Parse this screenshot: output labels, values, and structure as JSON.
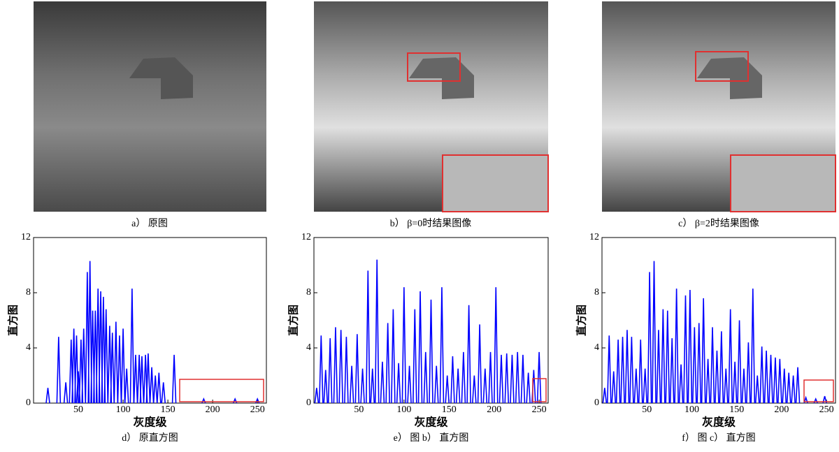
{
  "images": [
    {
      "caption": "a） 原图"
    },
    {
      "caption": "b） β=0时结果图像"
    },
    {
      "caption": "c） β=2时结果图像"
    }
  ],
  "chart_data": [
    {
      "type": "line",
      "caption": "d） 原直方图",
      "xlabel": "灰度级",
      "ylabel": "直方图",
      "color": "#0000ff",
      "xlim": [
        0,
        260
      ],
      "ylim": [
        0,
        12
      ],
      "xticks": [
        50,
        100,
        150,
        200,
        250
      ],
      "yticks": [
        0,
        4,
        8,
        12
      ],
      "x": [
        16,
        28,
        36,
        42,
        45,
        48,
        50,
        53,
        56,
        60,
        63,
        66,
        69,
        72,
        75,
        78,
        81,
        85,
        88,
        92,
        96,
        100,
        104,
        110,
        114,
        118,
        121,
        125,
        128,
        132,
        136,
        140,
        145,
        157,
        190,
        225,
        250
      ],
      "values": [
        1.1,
        4.8,
        1.5,
        4.6,
        5.4,
        4.9,
        2.3,
        4.6,
        5.4,
        9.5,
        10.3,
        6.7,
        6.7,
        8.3,
        8.1,
        7.7,
        6.8,
        5.6,
        5.1,
        5.9,
        4.9,
        5.4,
        2.5,
        8.3,
        3.5,
        3.5,
        3.4,
        3.5,
        3.6,
        2.6,
        2.0,
        2.2,
        1.5,
        3.5,
        0.3,
        0.3,
        0.3
      ]
    },
    {
      "type": "line",
      "caption": "e） 图 b） 直方图",
      "xlabel": "灰度级",
      "ylabel": "直方图",
      "color": "#0000ff",
      "xlim": [
        0,
        260
      ],
      "ylim": [
        0,
        12
      ],
      "xticks": [
        50,
        100,
        150,
        200,
        250
      ],
      "yticks": [
        0,
        4,
        8,
        12
      ],
      "x": [
        3,
        8,
        13,
        18,
        24,
        30,
        36,
        42,
        48,
        54,
        60,
        65,
        70,
        76,
        82,
        88,
        94,
        100,
        106,
        112,
        118,
        124,
        130,
        136,
        142,
        148,
        154,
        160,
        166,
        172,
        178,
        184,
        190,
        196,
        202,
        208,
        214,
        220,
        226,
        232,
        238,
        244,
        250
      ],
      "values": [
        1.1,
        4.9,
        2.4,
        4.7,
        5.5,
        5.3,
        4.8,
        2.7,
        5.0,
        2.5,
        9.6,
        2.5,
        10.4,
        3.0,
        5.8,
        6.8,
        2.9,
        8.4,
        2.7,
        6.8,
        8.1,
        3.7,
        7.5,
        2.7,
        8.4,
        2.0,
        3.4,
        2.5,
        3.7,
        7.1,
        2.0,
        5.7,
        2.5,
        3.7,
        8.4,
        3.5,
        3.6,
        3.5,
        3.7,
        3.5,
        2.2,
        2.4,
        3.7
      ]
    },
    {
      "type": "line",
      "caption": "f） 图 c） 直方图",
      "xlabel": "灰度级",
      "ylabel": "直方图",
      "color": "#0000ff",
      "xlim": [
        0,
        260
      ],
      "ylim": [
        0,
        12
      ],
      "xticks": [
        50,
        100,
        150,
        200,
        250
      ],
      "yticks": [
        0,
        4,
        8,
        12
      ],
      "x": [
        3,
        8,
        13,
        18,
        23,
        28,
        33,
        38,
        43,
        48,
        53,
        58,
        63,
        68,
        73,
        78,
        83,
        88,
        93,
        98,
        103,
        108,
        113,
        118,
        123,
        128,
        133,
        138,
        143,
        148,
        153,
        158,
        163,
        168,
        173,
        178,
        183,
        188,
        193,
        198,
        203,
        208,
        213,
        218,
        227,
        238,
        248
      ],
      "values": [
        1.1,
        4.9,
        2.3,
        4.6,
        4.8,
        5.3,
        4.8,
        2.5,
        4.6,
        2.5,
        9.5,
        10.3,
        5.3,
        6.8,
        6.7,
        4.7,
        8.3,
        2.8,
        7.8,
        8.2,
        5.5,
        5.8,
        7.6,
        3.2,
        5.5,
        3.8,
        5.2,
        2.5,
        6.8,
        3.0,
        6.0,
        2.5,
        4.4,
        8.3,
        2.0,
        4.1,
        3.8,
        3.5,
        3.3,
        3.2,
        2.5,
        2.2,
        2.0,
        2.6,
        0.4,
        0.3,
        0.5
      ]
    }
  ]
}
